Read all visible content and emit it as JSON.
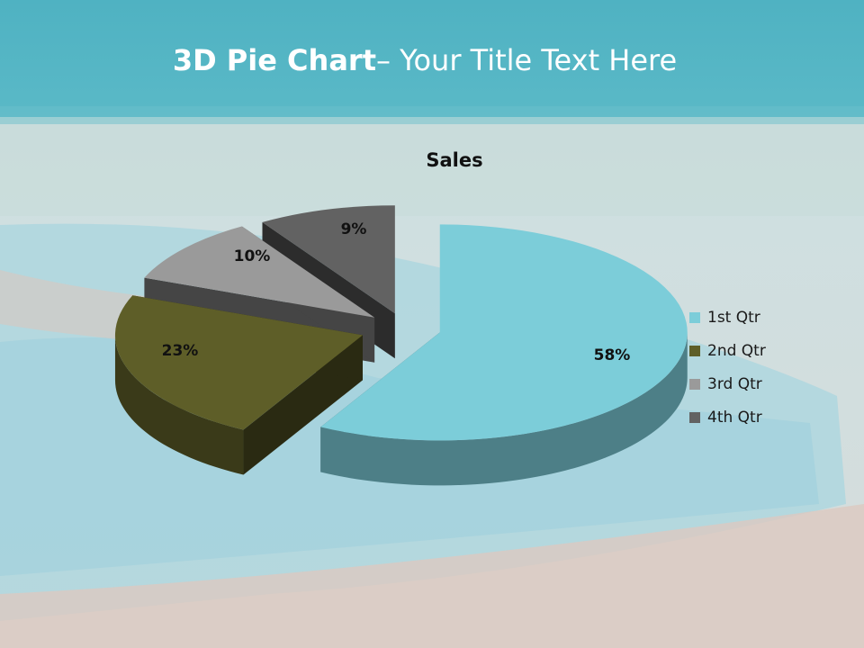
{
  "slide": {
    "title_bold": "3D Pie Chart",
    "title_rest": "– Your Title Text Here"
  },
  "chart_data": {
    "type": "pie",
    "title": "Sales",
    "categories": [
      "1st Qtr",
      "2nd Qtr",
      "3rd Qtr",
      "4th Qtr"
    ],
    "values": [
      58,
      23,
      10,
      9
    ],
    "data_labels": [
      "58%",
      "23%",
      "10%",
      "9%"
    ],
    "colors": [
      "#7ccdd9",
      "#5e5e28",
      "#9a9a9a",
      "#626262"
    ],
    "exploded": true,
    "three_d": true,
    "legend": "right"
  }
}
